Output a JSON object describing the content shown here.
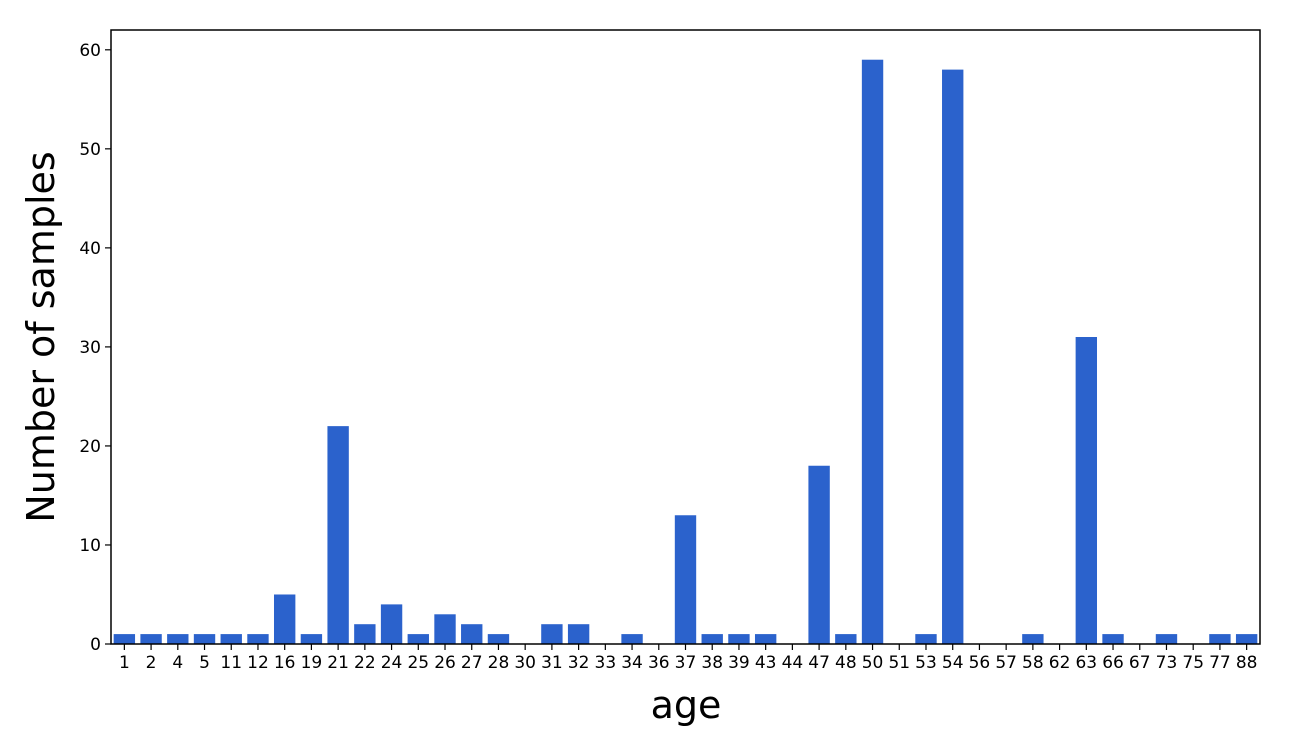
{
  "chart_data": {
    "type": "bar",
    "categories": [
      "1",
      "2",
      "4",
      "5",
      "11",
      "12",
      "16",
      "19",
      "21",
      "22",
      "24",
      "25",
      "26",
      "27",
      "28",
      "30",
      "31",
      "32",
      "33",
      "34",
      "36",
      "37",
      "38",
      "39",
      "43",
      "44",
      "47",
      "48",
      "50",
      "51",
      "53",
      "54",
      "56",
      "57",
      "58",
      "62",
      "63",
      "66",
      "67",
      "73",
      "75",
      "77",
      "88"
    ],
    "values": [
      1,
      1,
      1,
      1,
      1,
      1,
      5,
      1,
      22,
      2,
      4,
      1,
      3,
      2,
      1,
      0,
      2,
      2,
      0,
      1,
      0,
      13,
      1,
      1,
      1,
      0,
      18,
      1,
      59,
      0,
      1,
      58,
      0,
      0,
      1,
      0,
      31,
      1,
      0,
      1,
      0,
      1,
      1
    ],
    "xlabel": "age",
    "ylabel": "Number of samples",
    "ylim": [
      0,
      62
    ],
    "yticks": [
      0,
      10,
      20,
      30,
      40,
      50,
      60
    ],
    "grid": false,
    "bar_color": "#2b62cc"
  }
}
